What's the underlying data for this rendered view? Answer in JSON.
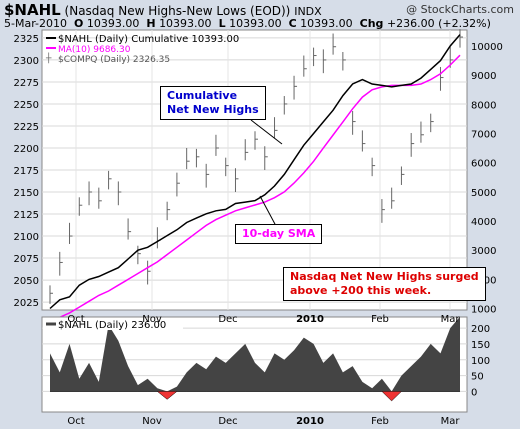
{
  "header": {
    "symbol": "$NAHL",
    "description": "(Nasdaq New Highs-New Lows (EOD))",
    "exchange": "INDX",
    "brand": "@ StockCharts.com",
    "date": "5-Mar-2010",
    "o_label": "O",
    "o_value": "10393.00",
    "h_label": "H",
    "h_value": "10393.00",
    "l_label": "L",
    "l_value": "10393.00",
    "c_label": "C",
    "c_value": "10393.00",
    "chg_label": "Chg",
    "chg_value": "+236.00 (+2.32%)"
  },
  "legend": {
    "cumulative": "$NAHL (Daily) Cumulative 10393.00",
    "ma": "MA(10) 9686.30",
    "compq": "$COMPQ (Daily) 2326.35"
  },
  "annotations": {
    "cum_line1": "Cumulative",
    "cum_line2": "Net New Highs",
    "sma": "10-day SMA",
    "surge_line1": "Nasdaq Net New Highs surged",
    "surge_line2": "above +200 this week."
  },
  "lower_panel": {
    "title": "$NAHL (Daily) 236.00"
  },
  "colors": {
    "cumulative": "#000000",
    "ma": "#ff00ff",
    "compq_bars": "#666666",
    "area_positive": "#444444",
    "area_negative": "#ee3333",
    "accent_blue": "#0000cc",
    "accent_magenta": "#ff00ff",
    "accent_red": "#dd0000"
  },
  "chart_data": [
    {
      "type": "line",
      "title": "$NAHL (Nasdaq New Highs-New Lows (EOD))",
      "x_ticks": [
        "Oct",
        "Nov",
        "Dec",
        "2010",
        "Feb",
        "Mar"
      ],
      "left_axis": {
        "label": "$COMPQ",
        "ylim": [
          2016,
          2334
        ],
        "ticks": [
          2025,
          2050,
          2075,
          2100,
          2125,
          2150,
          2175,
          2200,
          2225,
          2250,
          2275,
          2300,
          2325
        ]
      },
      "right_axis": {
        "label": "Cumulative",
        "ylim": [
          950,
          10550
        ],
        "ticks": [
          1000,
          2000,
          3000,
          4000,
          5000,
          6000,
          7000,
          8000,
          9000,
          10000
        ]
      },
      "series": [
        {
          "name": "$NAHL (Daily) Cumulative",
          "axis": "right",
          "values": [
            1000,
            1300,
            1400,
            1800,
            2000,
            2100,
            2250,
            2400,
            2700,
            3000,
            3100,
            3300,
            3500,
            3700,
            3950,
            4100,
            4250,
            4350,
            4400,
            4600,
            4650,
            4700,
            4900,
            5200,
            5600,
            6100,
            6600,
            7000,
            7400,
            7800,
            8300,
            8700,
            8850,
            8700,
            8650,
            8600,
            8650,
            8700,
            8900,
            9200,
            9500,
            10000,
            10393
          ]
        },
        {
          "name": "MA(10)",
          "axis": "right",
          "values": [
            500,
            700,
            850,
            1050,
            1250,
            1450,
            1600,
            1800,
            2000,
            2200,
            2400,
            2600,
            2850,
            3100,
            3350,
            3600,
            3850,
            4050,
            4200,
            4350,
            4450,
            4550,
            4650,
            4800,
            5000,
            5300,
            5650,
            6050,
            6500,
            6950,
            7400,
            7850,
            8250,
            8500,
            8600,
            8650,
            8650,
            8650,
            8700,
            8850,
            9050,
            9350,
            9686
          ]
        },
        {
          "name": "$COMPQ (Daily)",
          "axis": "left",
          "values": [
            2035,
            2070,
            2100,
            2135,
            2150,
            2140,
            2165,
            2150,
            2105,
            2080,
            2060,
            2095,
            2130,
            2160,
            2185,
            2190,
            2170,
            2200,
            2180,
            2165,
            2195,
            2210,
            2190,
            2220,
            2250,
            2270,
            2290,
            2305,
            2300,
            2315,
            2300,
            2230,
            2205,
            2180,
            2130,
            2140,
            2170,
            2205,
            2215,
            2230,
            2280,
            2300,
            2326
          ]
        }
      ]
    },
    {
      "type": "area",
      "title": "$NAHL (Daily)",
      "x_ticks": [
        "Oct",
        "Nov",
        "Dec",
        "2010",
        "Feb",
        "Mar"
      ],
      "ylim": [
        -65,
        235
      ],
      "ticks": [
        0,
        50,
        100,
        150,
        200
      ],
      "values": [
        120,
        60,
        150,
        40,
        90,
        30,
        210,
        160,
        80,
        20,
        40,
        10,
        -25,
        15,
        60,
        90,
        70,
        110,
        90,
        120,
        150,
        90,
        60,
        120,
        100,
        130,
        170,
        150,
        90,
        120,
        60,
        80,
        30,
        10,
        40,
        -30,
        50,
        80,
        110,
        150,
        120,
        200,
        236
      ]
    }
  ]
}
